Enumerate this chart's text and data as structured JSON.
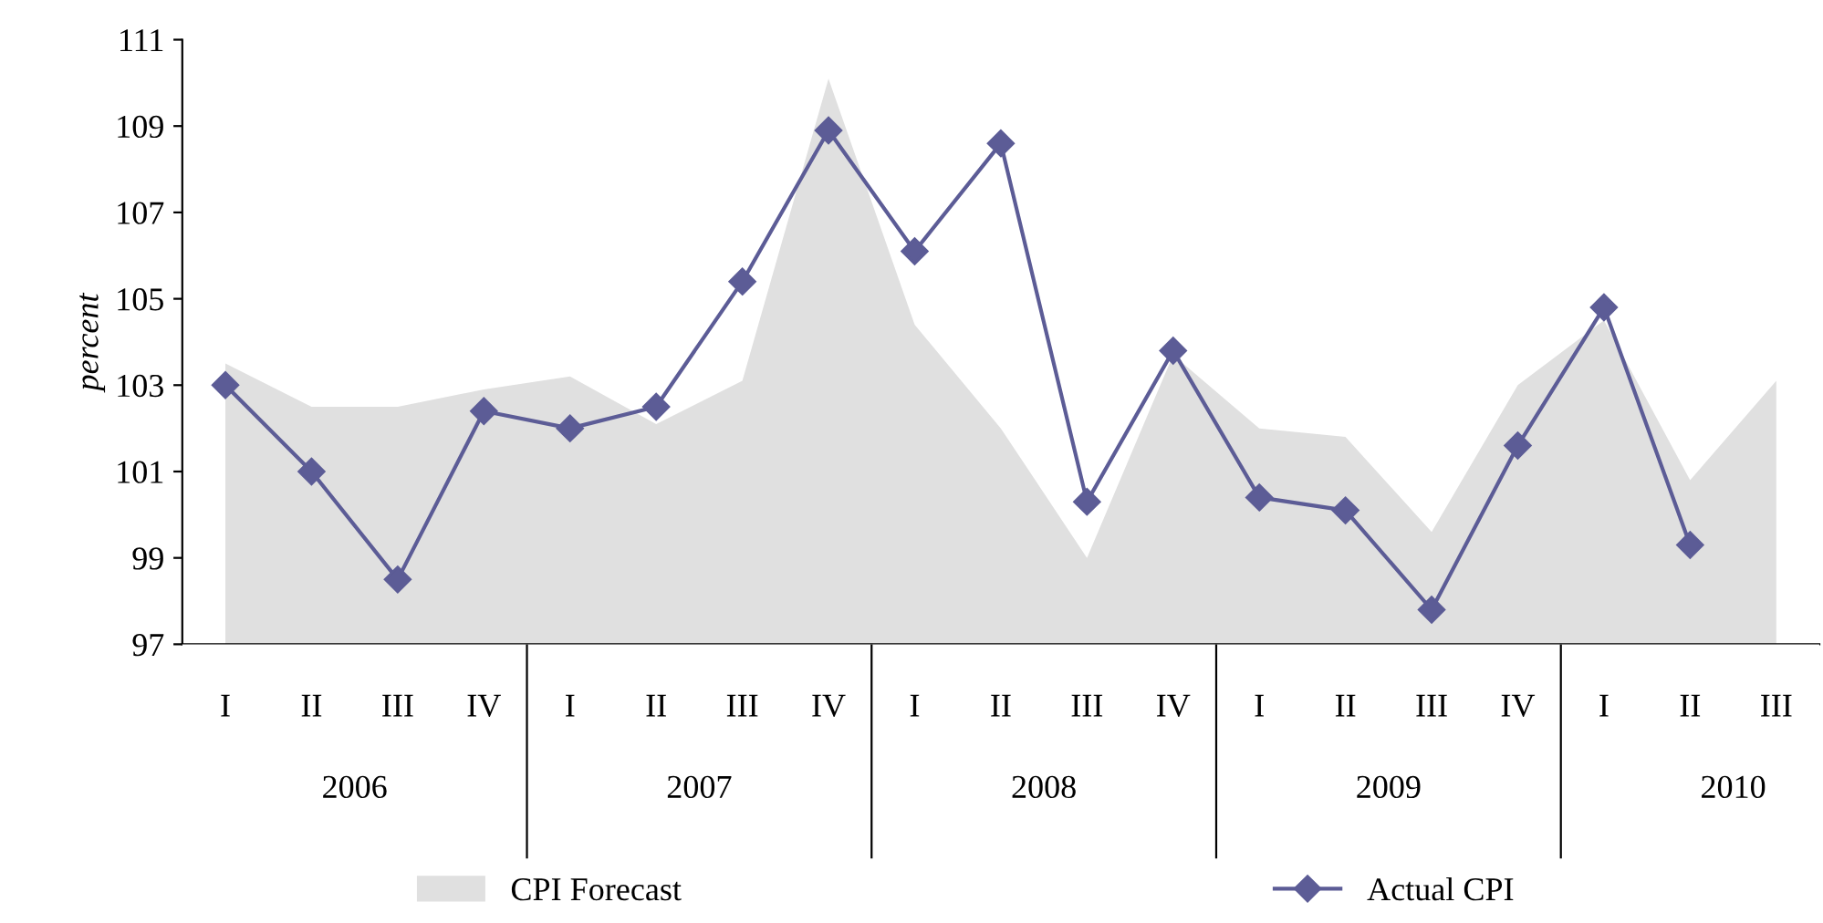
{
  "chart_data": {
    "type": "line",
    "ylabel": "percent",
    "categories": [
      "I",
      "II",
      "III",
      "IV",
      "I",
      "II",
      "III",
      "IV",
      "I",
      "II",
      "III",
      "IV",
      "I",
      "II",
      "III",
      "IV",
      "I",
      "II",
      "III"
    ],
    "series": [
      {
        "name": "CPI Forecast",
        "type": "area",
        "color": "#e0e0e0",
        "values": [
          103.5,
          102.5,
          102.5,
          102.9,
          103.2,
          102.1,
          103.1,
          110.1,
          104.4,
          102.0,
          99.0,
          103.7,
          102.0,
          101.8,
          99.6,
          103.0,
          104.5,
          100.8,
          103.1
        ]
      },
      {
        "name": "Actual CPI",
        "color": "#5c5c96",
        "marker": "diamond",
        "values": [
          103.0,
          101.0,
          98.5,
          102.4,
          102.0,
          102.5,
          105.4,
          108.9,
          106.1,
          108.6,
          100.3,
          103.8,
          100.4,
          100.1,
          97.8,
          101.6,
          104.8,
          99.3,
          null
        ]
      }
    ],
    "annotations": [
      "2006",
      "2007",
      "2008",
      "2009",
      "2010"
    ],
    "ylim": [
      97,
      111
    ],
    "yticks": [
      97,
      99,
      101,
      103,
      105,
      107,
      109,
      111
    ],
    "grid": false,
    "legend": "bottom"
  }
}
